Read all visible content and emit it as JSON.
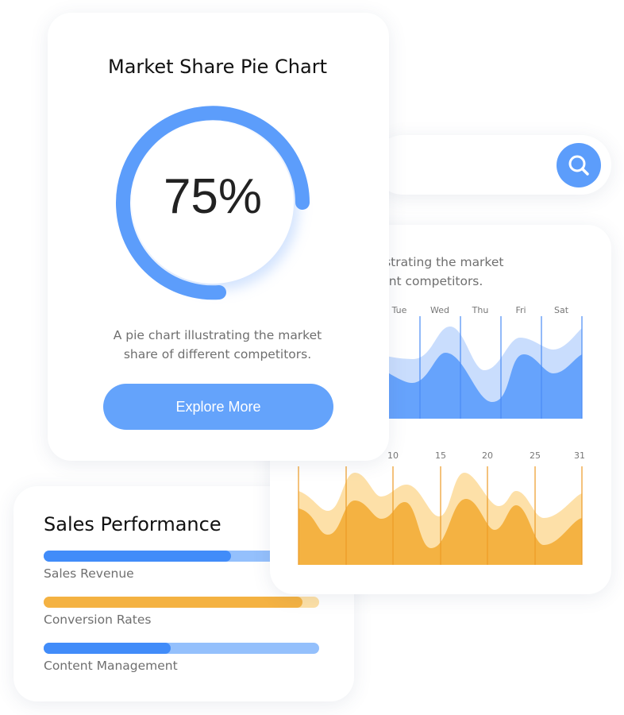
{
  "pie_card": {
    "title": "Market Share Pie Chart",
    "percent_label": "75%",
    "percent_value": 75,
    "description": "A pie chart illustrating the market share of different competitors.",
    "button_label": "Explore More"
  },
  "search": {
    "icon": "search-icon"
  },
  "chart_card": {
    "description_line1": "A pie chart illustrating the market",
    "description_line2": "share of different competitors.",
    "weekly_labels": [
      "Tue",
      "Wed",
      "Thu",
      "Fri",
      "Sat"
    ],
    "monthly_labels": [
      "10",
      "15",
      "20",
      "25",
      "31"
    ]
  },
  "sales": {
    "title": "Sales Performance",
    "items": [
      {
        "label": "Sales Revenue",
        "percent": 68,
        "color": "#418cf9",
        "track": "#94c0fc"
      },
      {
        "label": "Conversion Rates",
        "percent": 94,
        "color": "#f4b242",
        "track": "#fde0a6"
      },
      {
        "label": "Content Management",
        "percent": 46,
        "color": "#418cf9",
        "track": "#94c0fc"
      }
    ]
  },
  "colors": {
    "accent_blue": "#5c9dfb",
    "accent_orange": "#f4b242"
  }
}
